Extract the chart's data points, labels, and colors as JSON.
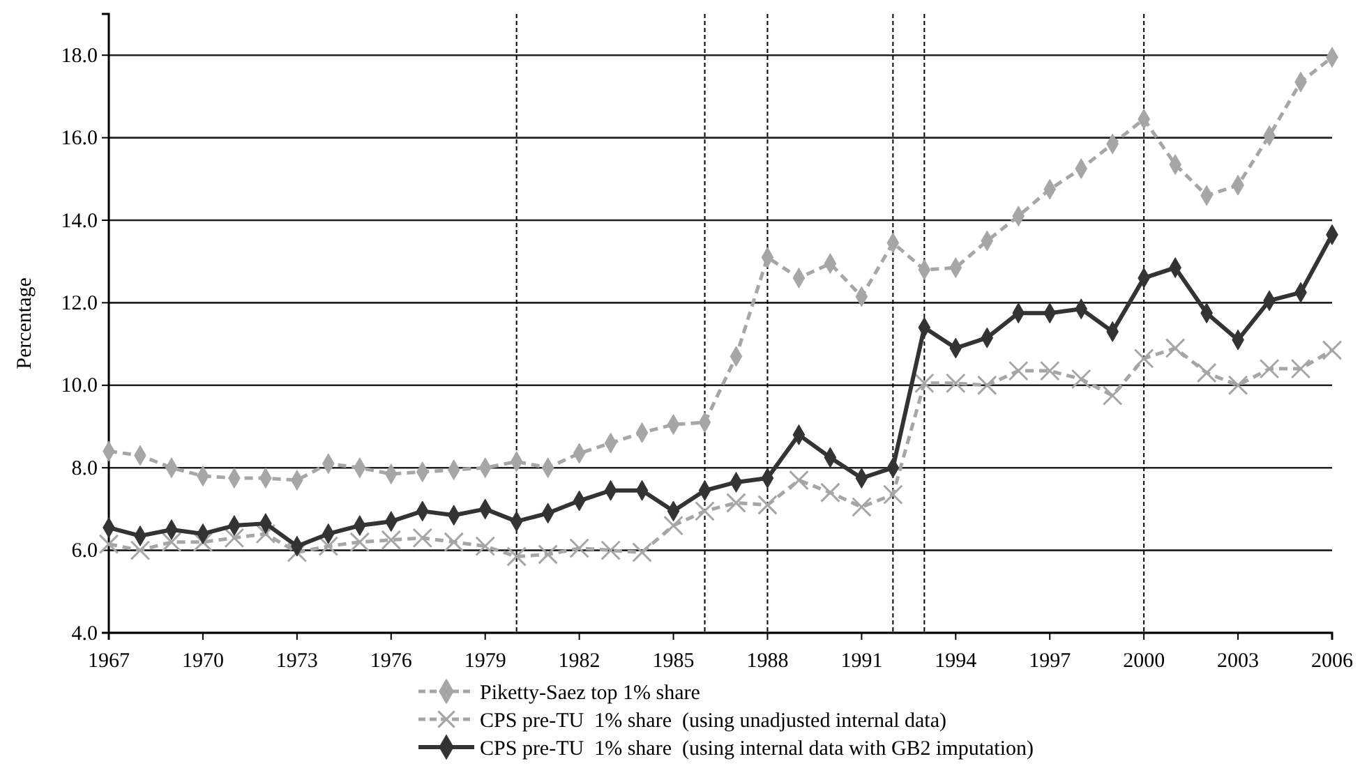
{
  "chart_data": {
    "type": "line",
    "ylabel": "Percentage",
    "x": [
      1967,
      1968,
      1969,
      1970,
      1971,
      1972,
      1973,
      1974,
      1975,
      1976,
      1977,
      1978,
      1979,
      1980,
      1981,
      1982,
      1983,
      1984,
      1985,
      1986,
      1987,
      1988,
      1989,
      1990,
      1991,
      1992,
      1993,
      1994,
      1995,
      1996,
      1997,
      1998,
      1999,
      2000,
      2001,
      2002,
      2003,
      2004,
      2005,
      2006
    ],
    "xlim": [
      1967,
      2006
    ],
    "xticks": [
      1967,
      1970,
      1973,
      1976,
      1979,
      1982,
      1985,
      1988,
      1991,
      1994,
      1997,
      2000,
      2003,
      2006
    ],
    "ylim": [
      4,
      19
    ],
    "yticks": [
      {
        "value": 4,
        "label": "4.0"
      },
      {
        "value": 6,
        "label": "6.0"
      },
      {
        "value": 8,
        "label": "8.0"
      },
      {
        "value": 10,
        "label": "10.0"
      },
      {
        "value": 12,
        "label": "12.0"
      },
      {
        "value": 14,
        "label": "14.0"
      },
      {
        "value": 16,
        "label": "16.0"
      },
      {
        "value": 18,
        "label": "18.0"
      }
    ],
    "grid": "y",
    "legend": "bottom",
    "series": [
      {
        "name": "Piketty-Saez top 1% share",
        "color": "#a6a6a6",
        "marker": "diamond",
        "line_style": "dashed",
        "values": [
          8.4,
          8.3,
          8.0,
          7.8,
          7.75,
          7.75,
          7.7,
          8.1,
          8.0,
          7.85,
          7.9,
          7.95,
          8.0,
          8.15,
          8.0,
          8.35,
          8.6,
          8.85,
          9.05,
          9.1,
          10.7,
          13.1,
          12.6,
          12.95,
          12.15,
          13.45,
          12.8,
          12.85,
          13.5,
          14.1,
          14.75,
          15.25,
          15.85,
          16.45,
          15.35,
          14.6,
          14.85,
          16.05,
          17.35,
          17.95
        ]
      },
      {
        "name": "CPS pre-TU  1% share  (using unadjusted internal data)",
        "color": "#a6a6a6",
        "marker": "cross",
        "line_style": "dashed",
        "values": [
          6.15,
          6.0,
          6.2,
          6.2,
          6.3,
          6.4,
          5.95,
          6.1,
          6.2,
          6.25,
          6.3,
          6.2,
          6.1,
          5.85,
          5.9,
          6.05,
          6.0,
          5.95,
          6.6,
          6.95,
          7.15,
          7.1,
          7.7,
          7.4,
          7.05,
          7.35,
          10.05,
          10.05,
          10.0,
          10.35,
          10.35,
          10.15,
          9.75,
          10.65,
          10.9,
          10.3,
          10.0,
          10.4,
          10.4,
          10.85
        ]
      },
      {
        "name": "CPS pre-TU  1% share  (using internal data with GB2 imputation)",
        "color": "#333333",
        "marker": "diamond",
        "line_style": "solid",
        "values": [
          6.55,
          6.35,
          6.5,
          6.4,
          6.6,
          6.65,
          6.1,
          6.4,
          6.6,
          6.7,
          6.95,
          6.85,
          7.0,
          6.7,
          6.9,
          7.2,
          7.45,
          7.45,
          6.95,
          7.45,
          7.65,
          7.75,
          8.8,
          8.25,
          7.75,
          8.0,
          11.4,
          10.9,
          11.15,
          11.75,
          11.75,
          11.85,
          11.3,
          12.6,
          12.85,
          11.75,
          11.1,
          12.05,
          12.25,
          13.65
        ]
      }
    ],
    "ref_lines": [
      {
        "axis": "x",
        "value": 1980,
        "line_style": "dashed",
        "color": "#000000"
      },
      {
        "axis": "x",
        "value": 1986,
        "line_style": "dashed",
        "color": "#000000"
      },
      {
        "axis": "x",
        "value": 1988,
        "line_style": "dashed",
        "color": "#000000"
      },
      {
        "axis": "x",
        "value": 1992,
        "line_style": "dashed",
        "color": "#000000"
      },
      {
        "axis": "x",
        "value": 1993,
        "line_style": "dashed",
        "color": "#000000"
      },
      {
        "axis": "x",
        "value": 2000,
        "line_style": "dashed",
        "color": "#000000"
      }
    ]
  }
}
